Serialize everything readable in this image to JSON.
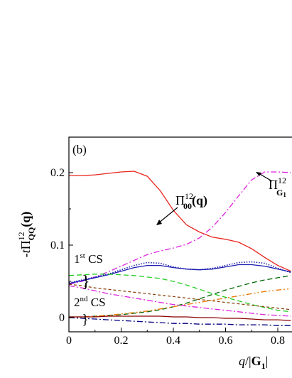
{
  "chart_data": {
    "type": "line",
    "panel_label": "(b)",
    "ylabel": {
      "prefix": "-",
      "t": "t",
      "Pi": "Π",
      "sup": "12",
      "sub": "QQ",
      "arg": "(q)"
    },
    "xlabel": {
      "q": "q",
      "slash": "/|",
      "G": "G",
      "sub": "1",
      "bar": "|"
    },
    "xlim": [
      0,
      0.85
    ],
    "ylim": [
      -0.025,
      0.225
    ],
    "x_ticks": [
      "0",
      "0.2",
      "0.4",
      "0.6",
      "0.8"
    ],
    "x_tick_values": [
      0,
      0.2,
      0.4,
      0.6,
      0.8
    ],
    "y_ticks": [
      "0",
      "0.1",
      "0.2"
    ],
    "y_tick_values": [
      0,
      0.1,
      0.2
    ],
    "annotations": {
      "pi00": {
        "Pi": "Π",
        "sub": "00",
        "sup": "12",
        "arg": "(q)"
      },
      "piG": {
        "Pi": "Π",
        "sub": "G",
        "subsub": "1",
        "sup": "12"
      },
      "cs1": {
        "num": "1",
        "sup": "st",
        "text": " CS"
      },
      "cs2": {
        "num": "2",
        "sup": "nd",
        "text": " CS"
      },
      "brace": "}"
    },
    "series": [
      {
        "style": "solid",
        "color": "#e8241c",
        "x": [
          0,
          0.05,
          0.1,
          0.15,
          0.2,
          0.25,
          0.3,
          0.35,
          0.4,
          0.45,
          0.5,
          0.55,
          0.6,
          0.65,
          0.7,
          0.75,
          0.8,
          0.85
        ],
        "y": [
          0.196,
          0.196,
          0.197,
          0.199,
          0.201,
          0.202,
          0.195,
          0.175,
          0.148,
          0.128,
          0.118,
          0.111,
          0.108,
          0.104,
          0.095,
          0.083,
          0.072,
          0.064
        ]
      },
      {
        "style": "dashdot",
        "color": "#dd22dd",
        "x": [
          0,
          0.05,
          0.1,
          0.15,
          0.2,
          0.25,
          0.3,
          0.35,
          0.4,
          0.45,
          0.5,
          0.55,
          0.6,
          0.65,
          0.7,
          0.75,
          0.8,
          0.85
        ],
        "y": [
          0.046,
          0.05,
          0.056,
          0.063,
          0.071,
          0.079,
          0.087,
          0.092,
          0.096,
          0.101,
          0.11,
          0.125,
          0.145,
          0.168,
          0.19,
          0.201,
          0.201,
          0.2
        ]
      },
      {
        "style": "dotted",
        "color": "#1a1ab0",
        "x": [
          0,
          0.05,
          0.1,
          0.15,
          0.2,
          0.25,
          0.3,
          0.35,
          0.4,
          0.45,
          0.5,
          0.55,
          0.6,
          0.65,
          0.7,
          0.75,
          0.8,
          0.85
        ],
        "y": [
          0.048,
          0.052,
          0.056,
          0.06,
          0.066,
          0.072,
          0.076,
          0.075,
          0.07,
          0.067,
          0.066,
          0.068,
          0.072,
          0.076,
          0.077,
          0.075,
          0.068,
          0.062
        ]
      },
      {
        "style": "solid",
        "color": "#1a1ab0",
        "x": [
          0,
          0.05,
          0.1,
          0.15,
          0.2,
          0.25,
          0.3,
          0.35,
          0.4,
          0.45,
          0.5,
          0.55,
          0.6,
          0.65,
          0.7,
          0.75,
          0.8,
          0.85
        ],
        "y": [
          0.047,
          0.051,
          0.055,
          0.059,
          0.064,
          0.069,
          0.072,
          0.072,
          0.069,
          0.067,
          0.066,
          0.067,
          0.07,
          0.073,
          0.073,
          0.071,
          0.067,
          0.063
        ]
      },
      {
        "style": "dashed",
        "color": "#22cc22",
        "x": [
          0,
          0.05,
          0.1,
          0.15,
          0.2,
          0.25,
          0.3,
          0.35,
          0.4,
          0.45,
          0.5,
          0.55,
          0.6,
          0.65,
          0.7,
          0.75,
          0.8,
          0.85
        ],
        "y": [
          0.058,
          0.059,
          0.06,
          0.06,
          0.059,
          0.058,
          0.056,
          0.054,
          0.05,
          0.045,
          0.039,
          0.033,
          0.028,
          0.023,
          0.018,
          0.014,
          0.01,
          0.008
        ]
      },
      {
        "style": "dashed",
        "color": "#006600",
        "x": [
          0,
          0.05,
          0.1,
          0.15,
          0.2,
          0.25,
          0.3,
          0.35,
          0.4,
          0.45,
          0.5,
          0.55,
          0.6,
          0.65,
          0.7,
          0.75,
          0.8,
          0.85
        ],
        "y": [
          0.001,
          0.001,
          0.002,
          0.003,
          0.004,
          0.006,
          0.008,
          0.011,
          0.015,
          0.02,
          0.026,
          0.032,
          0.038,
          0.043,
          0.048,
          0.052,
          0.055,
          0.058
        ]
      },
      {
        "style": "dashdotdot",
        "color": "#e87800",
        "x": [
          0,
          0.05,
          0.1,
          0.15,
          0.2,
          0.25,
          0.3,
          0.35,
          0.4,
          0.45,
          0.5,
          0.55,
          0.6,
          0.65,
          0.7,
          0.75,
          0.8,
          0.85
        ],
        "y": [
          0.0,
          0.001,
          0.002,
          0.003,
          0.005,
          0.007,
          0.009,
          0.012,
          0.015,
          0.018,
          0.021,
          0.024,
          0.027,
          0.03,
          0.033,
          0.036,
          0.038,
          0.04
        ]
      },
      {
        "style": "shortdash",
        "color": "#8b4513",
        "x": [
          0,
          0.05,
          0.1,
          0.15,
          0.2,
          0.25,
          0.3,
          0.35,
          0.4,
          0.45,
          0.5,
          0.55,
          0.6,
          0.65,
          0.7,
          0.75,
          0.8,
          0.85
        ],
        "y": [
          0.046,
          0.044,
          0.041,
          0.039,
          0.037,
          0.035,
          0.033,
          0.031,
          0.029,
          0.027,
          0.025,
          0.023,
          0.021,
          0.019,
          0.017,
          0.015,
          0.013,
          0.011
        ]
      },
      {
        "style": "dashdot",
        "color": "#dd22dd",
        "x": [
          0,
          0.05,
          0.1,
          0.15,
          0.2,
          0.25,
          0.3,
          0.35,
          0.4,
          0.45,
          0.5,
          0.55,
          0.6,
          0.65,
          0.7,
          0.75,
          0.8,
          0.85
        ],
        "y": [
          0.044,
          0.041,
          0.037,
          0.033,
          0.03,
          0.027,
          0.024,
          0.021,
          0.018,
          0.016,
          0.014,
          0.012,
          0.01,
          0.008,
          0.006,
          0.004,
          0.003,
          0.002
        ]
      },
      {
        "style": "solid",
        "color": "#8b0000",
        "x": [
          0,
          0.05,
          0.1,
          0.15,
          0.2,
          0.25,
          0.3,
          0.35,
          0.4,
          0.45,
          0.5,
          0.55,
          0.6,
          0.65,
          0.7,
          0.75,
          0.8,
          0.85
        ],
        "y": [
          0.001,
          0.001,
          0.001,
          0.002,
          0.002,
          0.002,
          0.002,
          0.002,
          0.001,
          0.001,
          0.0,
          0.0,
          -0.001,
          -0.001,
          -0.002,
          -0.003,
          -0.003,
          -0.004
        ]
      },
      {
        "style": "dashdot",
        "color": "#000080",
        "x": [
          0,
          0.05,
          0.1,
          0.15,
          0.2,
          0.25,
          0.3,
          0.35,
          0.4,
          0.45,
          0.5,
          0.55,
          0.6,
          0.65,
          0.7,
          0.75,
          0.8,
          0.85
        ],
        "y": [
          0.0,
          -0.001,
          -0.002,
          -0.003,
          -0.004,
          -0.005,
          -0.006,
          -0.007,
          -0.008,
          -0.008,
          -0.009,
          -0.009,
          -0.009,
          -0.01,
          -0.01,
          -0.01,
          -0.011,
          -0.011
        ]
      }
    ]
  }
}
